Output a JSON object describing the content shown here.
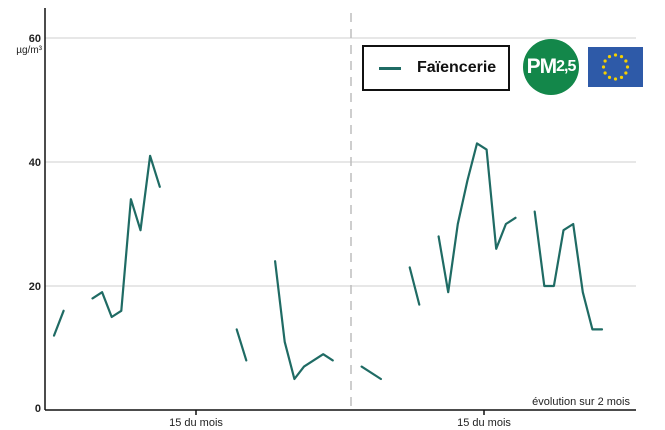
{
  "colors": {
    "series": "#1f6b64",
    "badge": "#13874a",
    "flag_blue": "#2e5aa8",
    "flag_star": "#f5d000",
    "grid": "#cfcfcf",
    "axis": "#111111",
    "divider": "#bdbdbd"
  },
  "badge": {
    "text_main": "PM",
    "text_sub": "2,5",
    "icon": "pm25-badge-icon"
  },
  "flag": {
    "icon": "eu-flag-icon"
  },
  "chart_data": {
    "type": "line",
    "unit_label": "µg/m³",
    "ylim": [
      0,
      65
    ],
    "yticks": [
      0,
      20,
      40,
      60
    ],
    "xlim": [
      0,
      61
    ],
    "xticks": [
      {
        "x": 15,
        "label": "15 du mois"
      },
      {
        "x": 45,
        "label": "15 du mois"
      }
    ],
    "divider_x": 31,
    "note": "évolution sur 2 mois",
    "grid": true,
    "legend": "top-right",
    "series": [
      {
        "name": "Faïencerie",
        "segments": [
          [
            [
              0,
              12
            ],
            [
              1,
              16
            ]
          ],
          [
            [
              4,
              18
            ],
            [
              5,
              19
            ],
            [
              6,
              15
            ],
            [
              7,
              16
            ],
            [
              8,
              34
            ],
            [
              9,
              29
            ],
            [
              10,
              41
            ],
            [
              11,
              36
            ]
          ],
          [
            [
              19,
              13
            ],
            [
              20,
              8
            ]
          ],
          [
            [
              23,
              24
            ],
            [
              24,
              11
            ],
            [
              25,
              5
            ],
            [
              26,
              7
            ],
            [
              28,
              9
            ],
            [
              29,
              8
            ]
          ],
          [
            [
              32,
              7
            ],
            [
              34,
              5
            ]
          ],
          [
            [
              37,
              23
            ],
            [
              38,
              17
            ]
          ],
          [
            [
              40,
              28
            ],
            [
              41,
              19
            ],
            [
              42,
              30
            ],
            [
              43,
              37
            ],
            [
              44,
              43
            ],
            [
              45,
              42
            ],
            [
              46,
              26
            ],
            [
              47,
              30
            ],
            [
              48,
              31
            ]
          ],
          [
            [
              50,
              32
            ],
            [
              51,
              20
            ],
            [
              52,
              20
            ],
            [
              53,
              29
            ],
            [
              54,
              30
            ],
            [
              55,
              19
            ],
            [
              56,
              13
            ],
            [
              57,
              13
            ]
          ]
        ]
      }
    ]
  }
}
